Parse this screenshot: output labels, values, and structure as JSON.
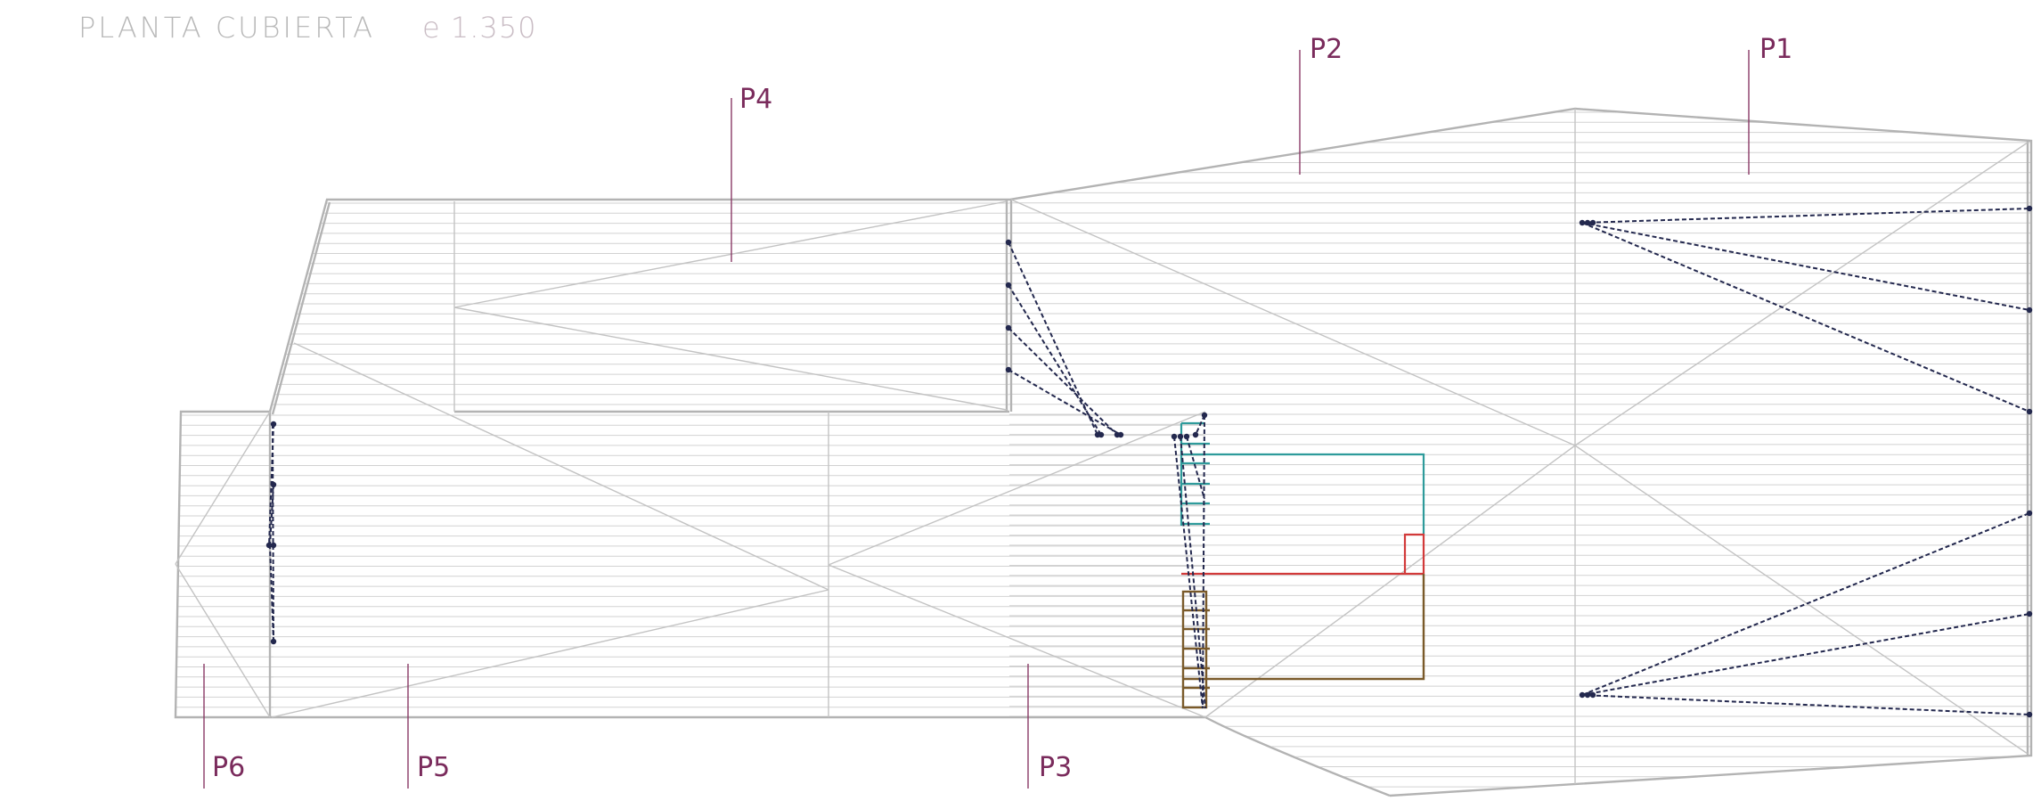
{
  "drawing": {
    "title": "PLANTA CUBIERTA",
    "scale": "e 1.350"
  },
  "labels": [
    "P1",
    "P2",
    "P3",
    "P4",
    "P5",
    "P6"
  ],
  "colors": {
    "outline": "#b3b3b3",
    "hatch": "#d2d2d2",
    "drainage": "#23284e",
    "label": "#7a2b5c",
    "stair_teal": "#2e9b9b",
    "stair_red": "#d23a3a",
    "stair_brown": "#7a5a2a"
  },
  "icons": [
    "drain-point-icon"
  ]
}
